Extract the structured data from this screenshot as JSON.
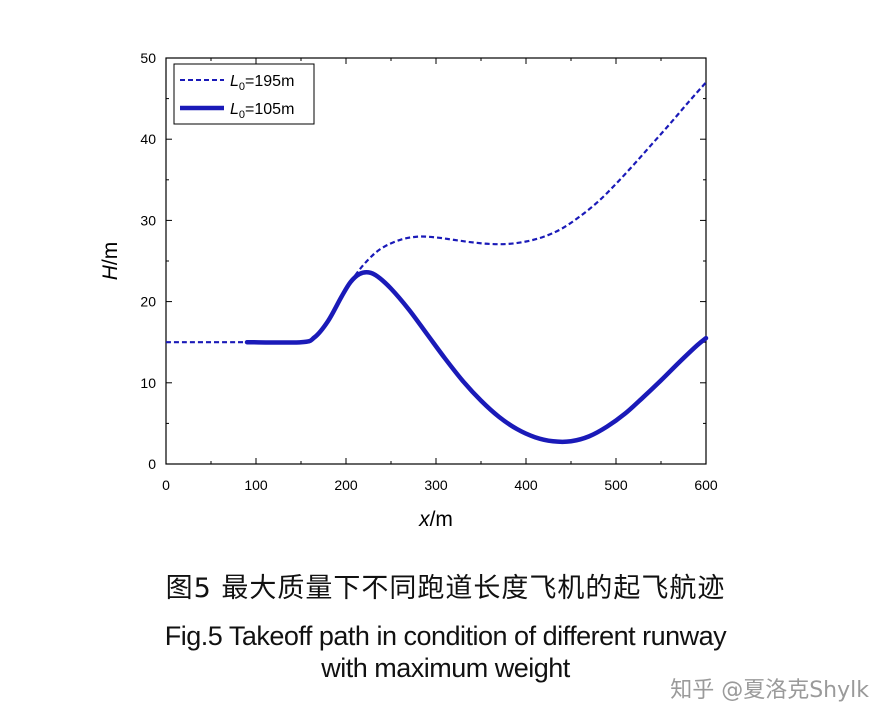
{
  "chart_data": {
    "type": "line",
    "xlabel_var": "x",
    "xlabel_unit": "/m",
    "ylabel_var": "H",
    "ylabel_unit": "/m",
    "xlim": [
      0,
      600
    ],
    "ylim": [
      0,
      50
    ],
    "x_ticks": [
      0,
      100,
      200,
      300,
      400,
      500,
      600
    ],
    "y_ticks": [
      0,
      10,
      20,
      30,
      40,
      50
    ],
    "grid": false,
    "legend_position": "top-left",
    "color": "#1a1ab8",
    "series": [
      {
        "label_var": "L",
        "label_sub": "0",
        "label_rest": "=195m",
        "style": "dashed",
        "x": [
          0,
          90,
          150,
          165,
          180,
          195,
          210,
          225,
          240,
          260,
          280,
          300,
          320,
          340,
          360,
          380,
          400,
          420,
          440,
          460,
          480,
          500,
          520,
          540,
          560,
          580,
          600
        ],
        "y": [
          15,
          15,
          15,
          15.6,
          17.6,
          20.6,
          23.2,
          25.2,
          26.6,
          27.6,
          28.0,
          27.9,
          27.6,
          27.3,
          27.1,
          27.1,
          27.4,
          28.0,
          29.0,
          30.5,
          32.3,
          34.5,
          36.9,
          39.4,
          41.9,
          44.5,
          47.0
        ]
      },
      {
        "label_var": "L",
        "label_sub": "0",
        "label_rest": "=105m",
        "style": "solid",
        "x": [
          90,
          150,
          165,
          180,
          195,
          205,
          215,
          225,
          235,
          250,
          270,
          290,
          310,
          330,
          350,
          370,
          390,
          410,
          430,
          450,
          470,
          490,
          510,
          530,
          550,
          570,
          590,
          600
        ],
        "y": [
          15,
          15,
          15.6,
          17.6,
          20.6,
          22.4,
          23.4,
          23.6,
          23.1,
          21.6,
          19.0,
          16.0,
          13.0,
          10.2,
          7.8,
          5.8,
          4.3,
          3.3,
          2.8,
          2.8,
          3.4,
          4.6,
          6.2,
          8.2,
          10.3,
          12.5,
          14.6,
          15.5
        ]
      }
    ]
  },
  "caption": {
    "cn": "图5  最大质量下不同跑道长度飞机的起飞航迹",
    "en_line1": "Fig.5  Takeoff path in condition of different runway",
    "en_line2": "with maximum weight"
  },
  "watermark": "知乎 @夏洛克Shylk"
}
